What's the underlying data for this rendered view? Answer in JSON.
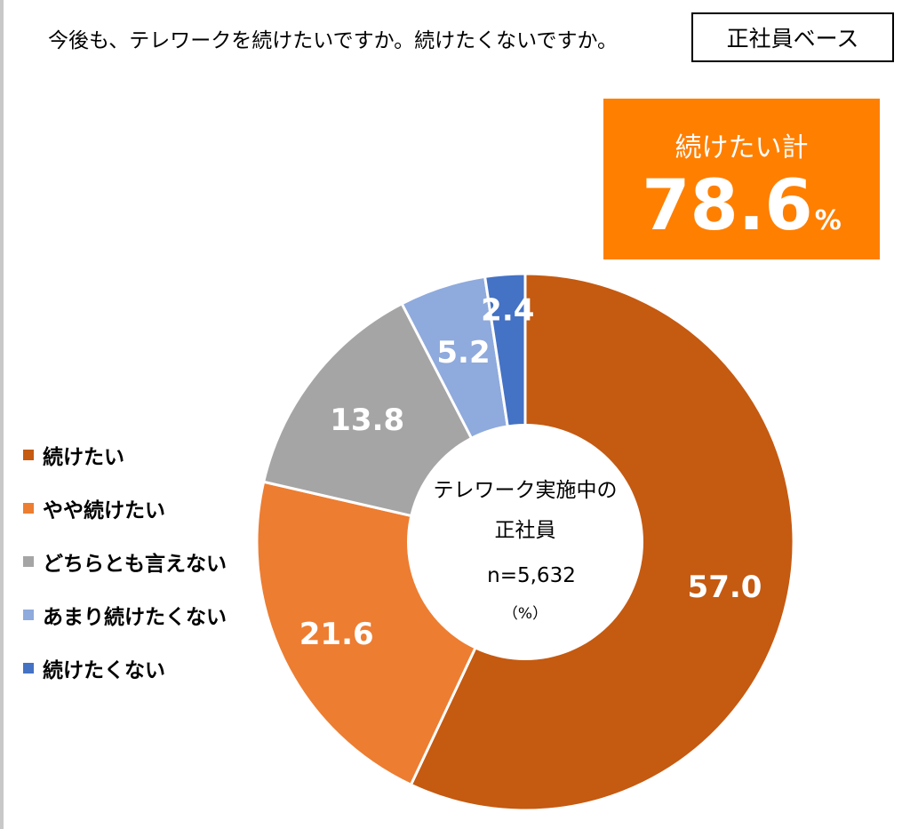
{
  "header": {
    "question": "今後も、テレワークを続けたいですか。続けたくないですか。",
    "base": "正社員ベース"
  },
  "summary": {
    "label": "続けたい計",
    "value": "78.6",
    "unit": "%",
    "color": "#ff7f00"
  },
  "center": {
    "line1": "テレワーク実施中の",
    "line2": "正社員",
    "n": "n=5,632",
    "unit": "（%）"
  },
  "chart_data": {
    "type": "pie",
    "donut": true,
    "start": "top",
    "direction": "clockwise",
    "legend_position": "left",
    "categories": [
      "続けたい",
      "やや続けたい",
      "どちらとも言えない",
      "あまり続けたくない",
      "続けたくない"
    ],
    "values": [
      57.0,
      21.6,
      13.8,
      5.2,
      2.4
    ],
    "labels": [
      "57.0",
      "21.6",
      "13.8",
      "5.2",
      "2.4"
    ],
    "colors": [
      "#c55a11",
      "#ed7d31",
      "#a5a5a5",
      "#8faadc",
      "#4472c4"
    ]
  }
}
